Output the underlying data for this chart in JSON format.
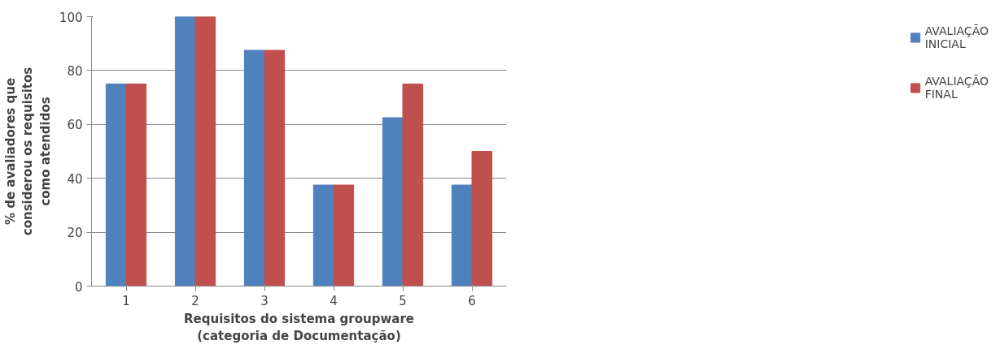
{
  "chart_data": {
    "type": "bar",
    "xlabel": "Requisitos do sistema groupware\n(categoria de Documentação)",
    "ylabel": "% de avaliadores que\nconsiderou os requisitos\ncomo atendidos",
    "categories": [
      "1",
      "2",
      "3",
      "4",
      "5",
      "6"
    ],
    "series": [
      {
        "name": "AVALIAÇÃO INICIAL",
        "color": "#4f81bd",
        "values": [
          75,
          100,
          87.5,
          37.5,
          62.5,
          37.5
        ]
      },
      {
        "name": "AVALIAÇÃO FINAL",
        "color": "#c0504d",
        "values": [
          75,
          100,
          87.5,
          37.5,
          75,
          50
        ]
      }
    ],
    "ylim": [
      0,
      100
    ],
    "yticks": [
      0,
      20,
      40,
      60,
      80,
      100
    ],
    "grid": "y",
    "legend": "right"
  }
}
